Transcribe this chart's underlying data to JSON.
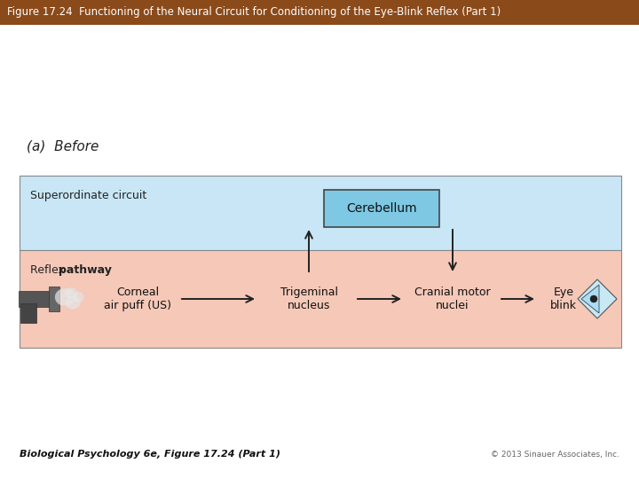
{
  "title": "Figure 17.24  Functioning of the Neural Circuit for Conditioning of the Eye-Blink Reflex (Part 1)",
  "title_bg": "#8B4A1A",
  "title_color": "#FFFFFF",
  "fig_bg": "#FFFFFF",
  "label_a": "(a)  Before",
  "superordinate_label": "Superordinate circuit",
  "reflex_label_normal": "Reflex ",
  "reflex_label_bold": "pathway",
  "superordinate_bg": "#C8E6F5",
  "reflex_bg": "#F5C8B8",
  "cerebellum_box_color": "#7EC8E3",
  "cerebellum_label": "Cerebellum",
  "node_corneal": "Corneal\nair puff (US)",
  "node_trigeminal": "Trigeminal\nnucleus",
  "node_cranial": "Cranial motor\nnuclei",
  "node_eye": "Eye\nblink",
  "footer_left": "Biological Psychology 6e, Figure 17.24 (Part 1)",
  "footer_right": "© 2013 Sinauer Associates, Inc.",
  "border_color": "#888888",
  "arrow_color": "#222222"
}
